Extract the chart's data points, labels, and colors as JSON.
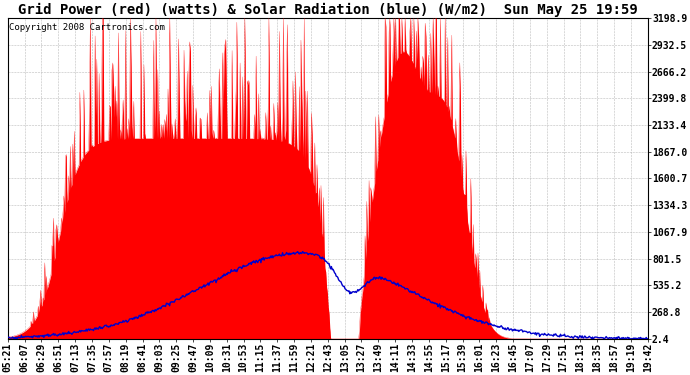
{
  "title": "Grid Power (red) (watts) & Solar Radiation (blue) (W/m2)  Sun May 25 19:59",
  "copyright_text": "Copyright 2008 Cartronics.com",
  "yticks": [
    2.4,
    268.8,
    535.2,
    801.5,
    1067.9,
    1334.3,
    1600.7,
    1867.0,
    2133.4,
    2399.8,
    2666.2,
    2932.5,
    3198.9
  ],
  "ymin": 2.4,
  "ymax": 3198.9,
  "x_labels": [
    "05:21",
    "06:07",
    "06:29",
    "06:51",
    "07:13",
    "07:35",
    "07:57",
    "08:19",
    "08:41",
    "09:03",
    "09:25",
    "09:47",
    "10:09",
    "10:31",
    "10:53",
    "11:15",
    "11:37",
    "11:59",
    "12:21",
    "12:43",
    "13:05",
    "13:27",
    "13:49",
    "14:11",
    "14:33",
    "14:55",
    "15:17",
    "15:39",
    "16:01",
    "16:23",
    "16:45",
    "17:07",
    "17:29",
    "17:51",
    "18:13",
    "18:35",
    "18:57",
    "19:19",
    "19:42"
  ],
  "background_color": "#ffffff",
  "grid_color": "#aaaaaa",
  "red_color": "#ff0000",
  "blue_color": "#0000cc",
  "title_fontsize": 10,
  "tick_fontsize": 7,
  "copyright_fontsize": 6.5,
  "figwidth": 6.9,
  "figheight": 3.75,
  "dpi": 100
}
